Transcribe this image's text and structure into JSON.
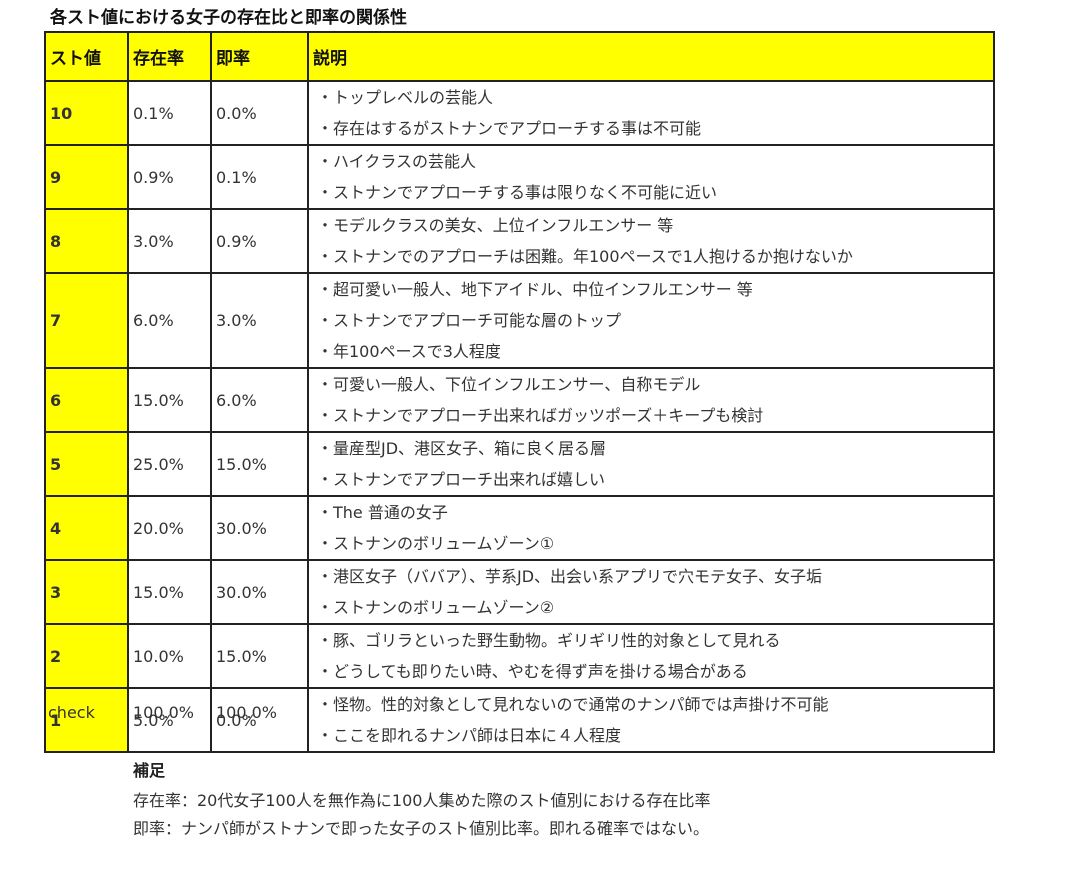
{
  "title": "各スト値における女子の存在比と即率の関係性",
  "headers": [
    "スト値",
    "存在率",
    "即率",
    "説明"
  ],
  "rows": [
    {
      "score": "10",
      "existence": "0.1%",
      "rate": "0.0%",
      "desc": [
        "・トップレベルの芸能人",
        "・存在はするがストナンでアプローチする事は不可能"
      ]
    },
    {
      "score": "9",
      "existence": "0.9%",
      "rate": "0.1%",
      "desc": [
        "・ハイクラスの芸能人",
        "・ストナンでアプローチする事は限りなく不可能に近い"
      ]
    },
    {
      "score": "8",
      "existence": "3.0%",
      "rate": "0.9%",
      "desc": [
        "・モデルクラスの美女、上位インフルエンサー 等",
        "・ストナンでのアプローチは困難。年100ペースで1人抱けるか抱けないか"
      ]
    },
    {
      "score": "7",
      "existence": "6.0%",
      "rate": "3.0%",
      "desc": [
        "・超可愛い一般人、地下アイドル、中位インフルエンサー 等",
        "・ストナンでアプローチ可能な層のトップ",
        "・年100ペースで3人程度"
      ]
    },
    {
      "score": "6",
      "existence": "15.0%",
      "rate": "6.0%",
      "desc": [
        "・可愛い一般人、下位インフルエンサー、自称モデル",
        "・ストナンでアプローチ出来ればガッツポーズ＋キープも検討"
      ]
    },
    {
      "score": "5",
      "existence": "25.0%",
      "rate": "15.0%",
      "desc": [
        "・量産型JD、港区女子、箱に良く居る層",
        "・ストナンでアプローチ出来れば嬉しい"
      ]
    },
    {
      "score": "4",
      "existence": "20.0%",
      "rate": "30.0%",
      "desc": [
        "・The 普通の女子",
        "・ストナンのボリュームゾーン①"
      ]
    },
    {
      "score": "3",
      "existence": "15.0%",
      "rate": "30.0%",
      "desc": [
        "・港区女子（ババア）、芋系JD、出会い系アプリで穴モテ女子、女子垢",
        "・ストナンのボリュームゾーン②"
      ]
    },
    {
      "score": "2",
      "existence": "10.0%",
      "rate": "15.0%",
      "desc": [
        "・豚、ゴリラといった野生動物。ギリギリ性的対象として見れる",
        "・どうしても即りたい時、やむを得ず声を掛ける場合がある"
      ]
    },
    {
      "score": "1",
      "existence": "5.0%",
      "rate": "0.0%",
      "desc": [
        "・怪物。性的対象として見れないので通常のナンパ師では声掛け不可能",
        "・ここを即れるナンパ師は日本に４人程度"
      ]
    }
  ],
  "check": {
    "label": "check",
    "existence": "100.0%",
    "rate": "100.0%"
  },
  "notes": {
    "heading": "補足",
    "lines": [
      "存在率：20代女子100人を無作為に100人集めた際のスト値別における存在比率",
      "即率：ナンパ師がストナンで即った女子のスト値別比率。即れる確率ではない。"
    ]
  },
  "colors": {
    "highlight": "#ffff00",
    "border": "#222222"
  }
}
